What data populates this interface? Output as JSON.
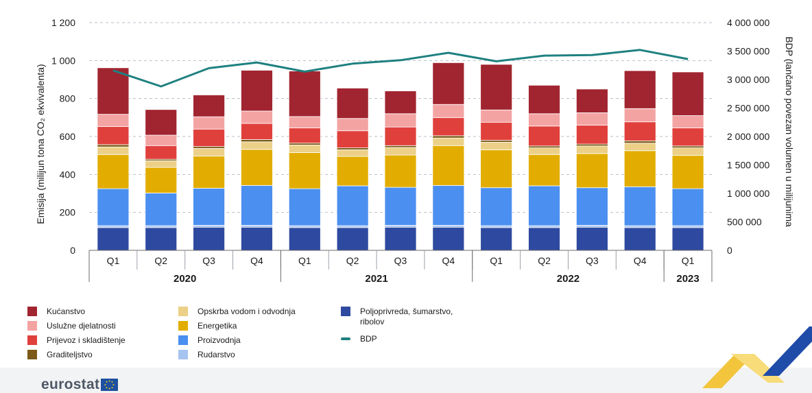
{
  "chart_data": {
    "type": "bar",
    "stacked": true,
    "categories": [
      "Q1",
      "Q2",
      "Q3",
      "Q4",
      "Q1",
      "Q2",
      "Q3",
      "Q4",
      "Q1",
      "Q2",
      "Q3",
      "Q4",
      "Q1"
    ],
    "years": [
      {
        "label": "2020",
        "span": 4
      },
      {
        "label": "2021",
        "span": 4
      },
      {
        "label": "2022",
        "span": 4
      },
      {
        "label": "2023",
        "span": 1
      }
    ],
    "ylabel": "Emisija (milijun tona CO₂ ekvivalenta)",
    "ylim": [
      0,
      1200
    ],
    "yticks": [
      0,
      200,
      400,
      600,
      800,
      1000,
      1200
    ],
    "ytick_labels": [
      "0",
      "200",
      "400",
      "600",
      "800",
      "1 000",
      "1 200"
    ],
    "y2label": "BDP (lančano povezan volumen u milijunima",
    "y2lim": [
      0,
      4000000
    ],
    "y2ticks": [
      0,
      500000,
      1000000,
      1500000,
      2000000,
      2500000,
      3000000,
      3500000,
      4000000
    ],
    "y2tick_labels": [
      "0",
      "500 000",
      "1 000 000",
      "1 500 000",
      "2 000 000",
      "2 500 000",
      "3 000 000",
      "3 500 000",
      "4 000 000"
    ],
    "grid": true,
    "series": [
      {
        "name": "Poljoprivreda, šumarstvo, ribolov",
        "color": "#2e4aa0",
        "values": [
          120,
          120,
          122,
          122,
          120,
          120,
          122,
          122,
          120,
          120,
          122,
          120,
          120
        ]
      },
      {
        "name": "Rudarstvo",
        "color": "#a6c4f0",
        "values": [
          10,
          10,
          10,
          10,
          10,
          10,
          10,
          10,
          10,
          10,
          10,
          10,
          10
        ]
      },
      {
        "name": "Proizvodnja",
        "color": "#4b8ff0",
        "values": [
          195,
          172,
          195,
          210,
          195,
          210,
          200,
          210,
          200,
          210,
          198,
          205,
          195
        ]
      },
      {
        "name": "Energetika",
        "color": "#e2ad00",
        "values": [
          180,
          135,
          170,
          190,
          190,
          155,
          170,
          210,
          200,
          165,
          180,
          190,
          175
        ]
      },
      {
        "name": "Opskrba vodom i odvodnja",
        "color": "#ecd088",
        "values": [
          40,
          35,
          40,
          40,
          40,
          35,
          40,
          40,
          40,
          35,
          40,
          40,
          40
        ]
      },
      {
        "name": "Graditeljstvo",
        "color": "#7a5a16",
        "values": [
          12,
          8,
          10,
          12,
          10,
          10,
          10,
          12,
          10,
          10,
          10,
          12,
          10
        ]
      },
      {
        "name": "Prijevoz i skladištenje",
        "color": "#e0403c",
        "values": [
          95,
          72,
          92,
          85,
          80,
          90,
          98,
          95,
          95,
          105,
          100,
          100,
          95
        ]
      },
      {
        "name": "Uslužne djelatnosti",
        "color": "#f4a3a3",
        "values": [
          65,
          55,
          65,
          65,
          60,
          65,
          70,
          70,
          65,
          65,
          65,
          70,
          65
        ]
      },
      {
        "name": "Kućanstvo",
        "color": "#a12530",
        "values": [
          245,
          135,
          115,
          215,
          240,
          160,
          120,
          220,
          240,
          150,
          125,
          200,
          230
        ]
      }
    ],
    "line_series": {
      "name": "BDP",
      "color": "#1f8080",
      "values": [
        3160000,
        2880000,
        3200000,
        3300000,
        3140000,
        3280000,
        3340000,
        3470000,
        3320000,
        3420000,
        3430000,
        3520000,
        3360000
      ]
    }
  },
  "brand": {
    "name": "eurostat"
  }
}
